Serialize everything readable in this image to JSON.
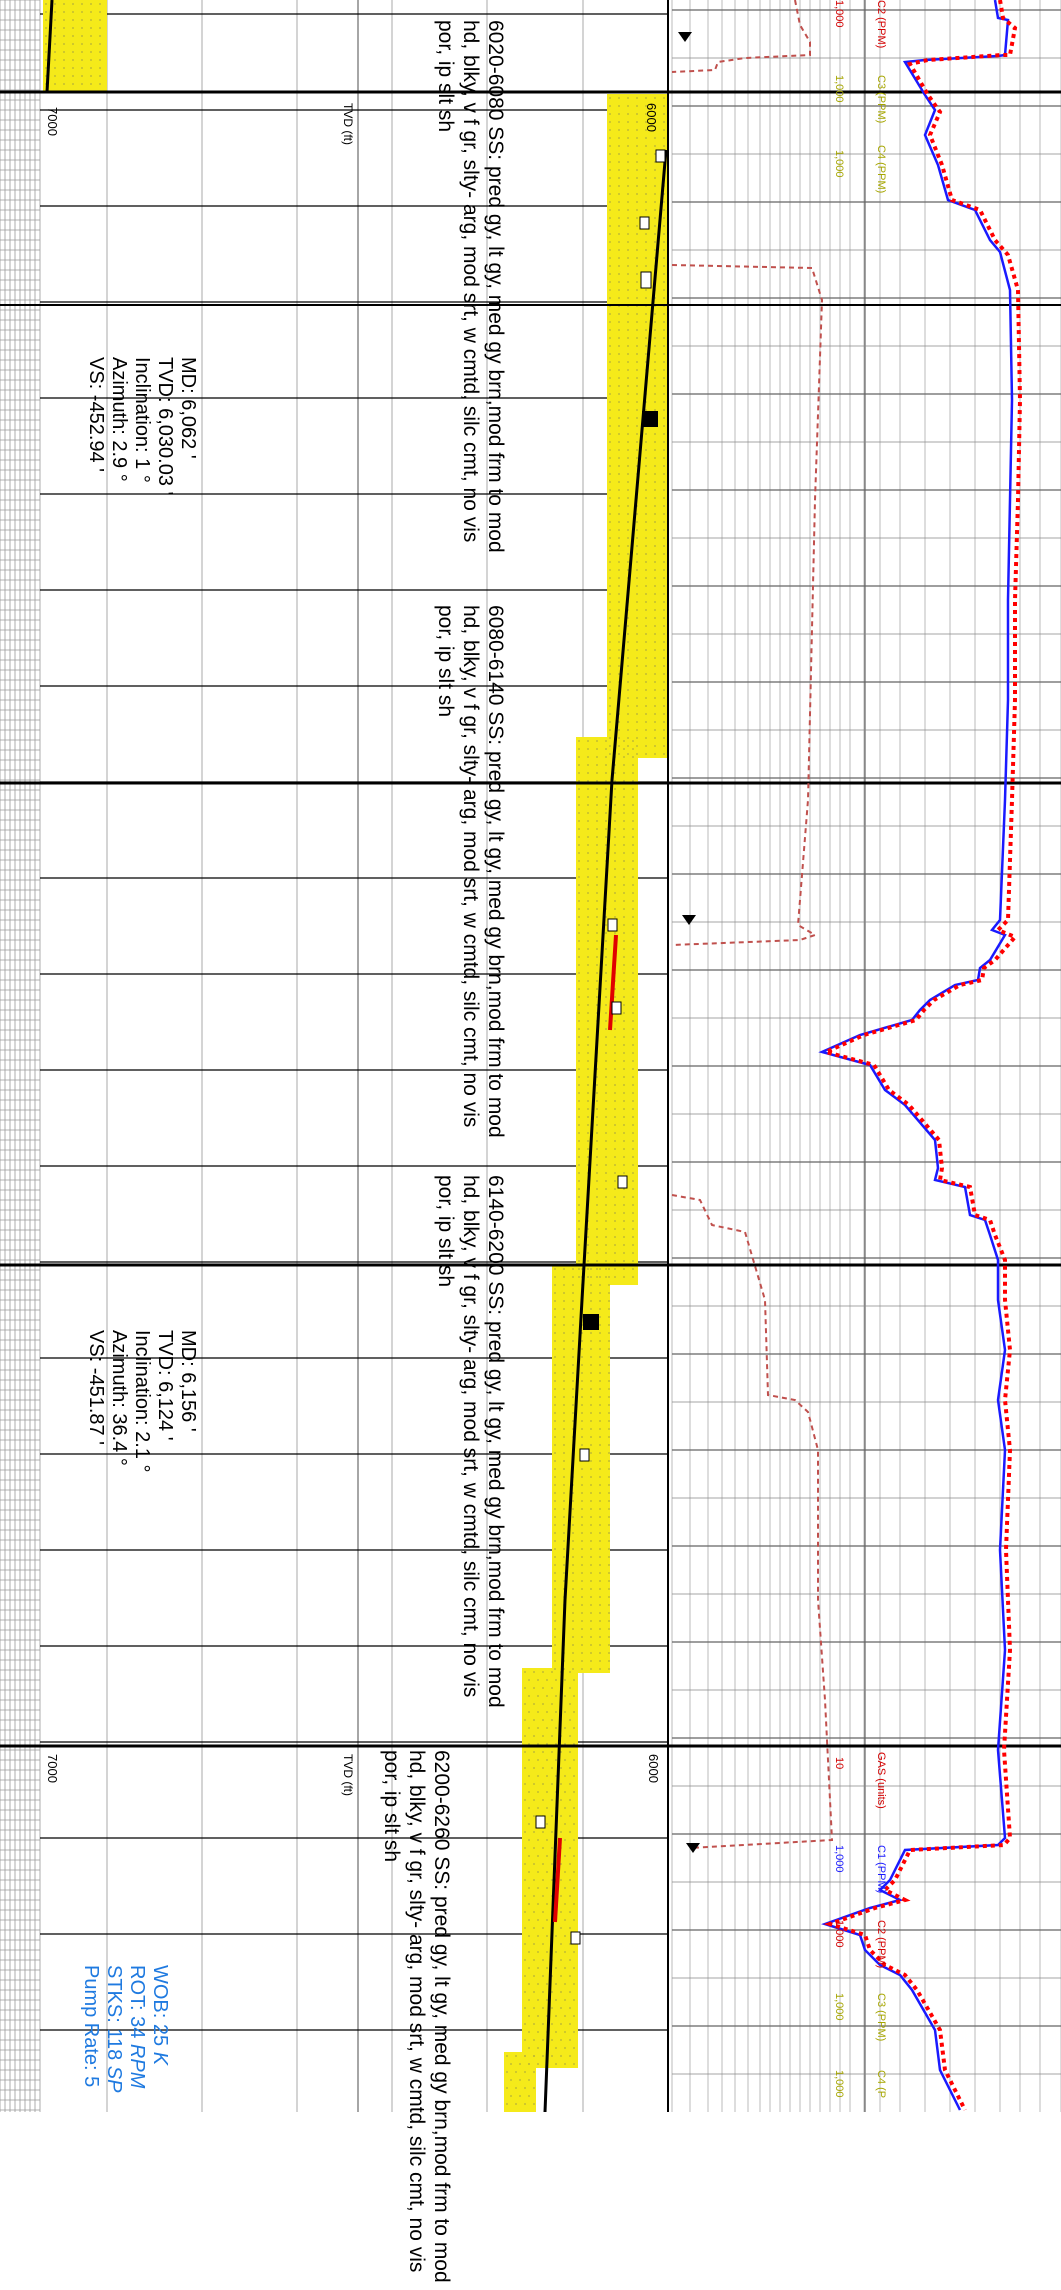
{
  "lithology_descriptions": [
    {
      "interval": "6020-6080",
      "text": "SS: pred gy, lt gy, med gy brn,mod frm to mod hd, blky, v f gr, slty- arg, mod srt, w cmtd, silc cmt, no vis por, ip slt sh"
    },
    {
      "interval": "6080-6140",
      "text": "SS: pred gy, lt gy, med gy brn,mod frm to mod hd, blky, v f gr, slty- arg, mod srt, w cmtd, silc cmt, no vis por, ip slt sh"
    },
    {
      "interval": "6140-6200",
      "text": "SS: pred gy, lt gy, med gy brn,mod frm to mod hd, blky, v f gr, slty- arg, mod srt, w cmtd, silc cmt, no vis por, ip slt sh"
    },
    {
      "interval": "6200-6260",
      "text": "SS: pred gy, lt gy, med gy brn,mod frm to mod hd, blky, v f gr, slty- arg, mod srt, w cmtd, silc cmt, no vis por, ip slt sh"
    }
  ],
  "surveys": [
    {
      "md": "MD: 6,062 '",
      "tvd": "TVD: 6,030.03 '",
      "inc": "Inclination: 1 °",
      "azi": "Azimuth: 2.9 °",
      "vs": "VS: -452.94 '"
    },
    {
      "md": "MD: 6,156 '",
      "tvd": "TVD: 6,124 '",
      "inc": "Inclination: 2.1 °",
      "azi": "Azimuth: 36.4 °",
      "vs": "VS: -451.87 '"
    }
  ],
  "drilling_params": {
    "wob_label": "WOB: 25 ",
    "wob_unit": "K",
    "rot_label": "ROT: 34 ",
    "rot_unit": "RPM",
    "stks_label": "STKS: 118 ",
    "stks_unit": "SP",
    "pump_label": "Pump Rate: 5"
  },
  "depth_scale": {
    "tvd_label": "TVD (ft)",
    "tick_6000": "6000",
    "tick_7000": "7000"
  },
  "gas_track": {
    "header_top": {
      "c2": "C2 (PPM)",
      "c3": "C3 (PPM)",
      "c4": "C4 (PPM)",
      "v1": "1,000",
      "v2": "1,000",
      "v3": "1,000"
    },
    "header_bottom": {
      "gas": "GAS (units)",
      "c1": "C1 (PPM)",
      "c2": "C2 (PPM)",
      "c3": "C3 (PPM)",
      "c4": "C4 (P",
      "v_gas": "10",
      "v_c1": "1,000",
      "v_c2": "1,000",
      "v_c3": "1,000",
      "v_c4": "1,000"
    }
  },
  "colors": {
    "lithology_fill": "#f5ea1a",
    "gas_total": "#ff0000",
    "c1_line": "#1a1aff",
    "c_secondary": "#c0504d",
    "label_gas_red": "#d40000",
    "label_c1_blue": "#1a1aff",
    "label_c3_olive": "#a6a600",
    "params_blue": "#1f7ae0"
  },
  "icons": [
    "triangle-marker-icon",
    "survey-square-marker-icon"
  ]
}
